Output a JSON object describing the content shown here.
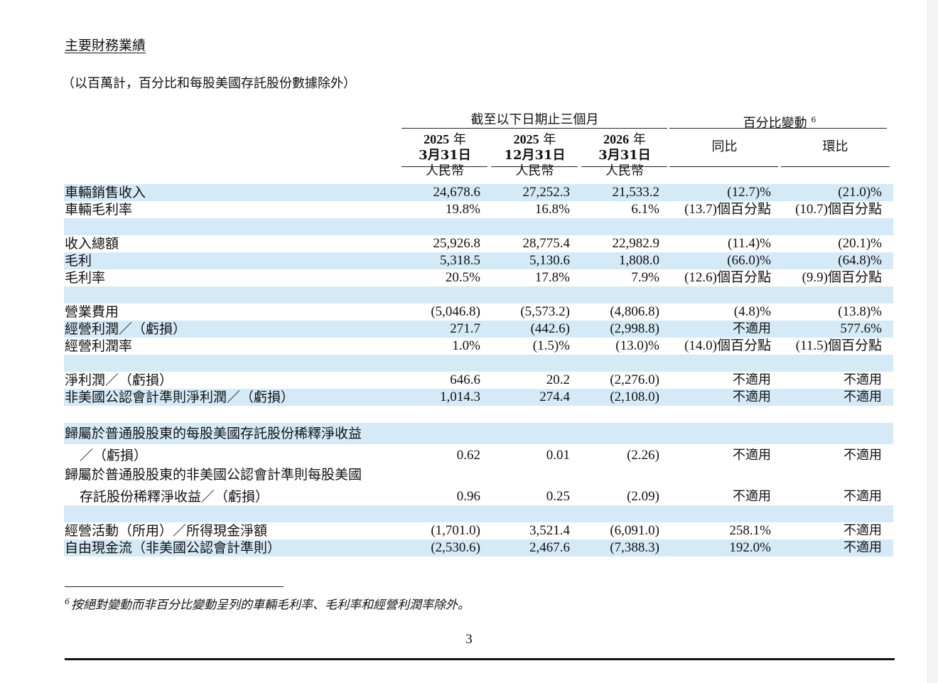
{
  "section_title": "主要財務業績",
  "units_note": "（以百萬計，百分比和每股美國存託股份數據除外）",
  "group_headers": {
    "three_months": "截至以下日期止三個月",
    "pct_change": "百分比變動",
    "pct_change_note": "6"
  },
  "columns": [
    {
      "year": "2025",
      "year_suffix": "年",
      "date": "3月31日",
      "currency": "人民幣"
    },
    {
      "year": "2025",
      "year_suffix": "年",
      "date": "12月31日",
      "currency": "人民幣"
    },
    {
      "year": "2026",
      "year_suffix": "年",
      "date": "3月31日",
      "currency": "人民幣"
    }
  ],
  "change_columns": [
    "同比",
    "環比"
  ],
  "rows": [
    {
      "label": [
        "車輛銷售收入"
      ],
      "values": [
        "24,678.6",
        "27,252.3",
        "21,533.2",
        "(12.7)%",
        "(21.0)%"
      ]
    },
    {
      "label": [
        "車輛毛利率"
      ],
      "values": [
        "19.8%",
        "16.8%",
        "6.1%",
        "(13.7)個百分點",
        "(10.7)個百分點"
      ]
    },
    {
      "label": [
        "收入總額"
      ],
      "values": [
        "25,926.8",
        "28,775.4",
        "22,982.9",
        "(11.4)%",
        "(20.1)%"
      ]
    },
    {
      "label": [
        "毛利"
      ],
      "values": [
        "5,318.5",
        "5,130.6",
        "1,808.0",
        "(66.0)%",
        "(64.8)%"
      ]
    },
    {
      "label": [
        "毛利率"
      ],
      "values": [
        "20.5%",
        "17.8%",
        "7.9%",
        "(12.6)個百分點",
        "(9.9)個百分點"
      ]
    },
    {
      "label": [
        "營業費用"
      ],
      "values": [
        "(5,046.8)",
        "(5,573.2)",
        "(4,806.8)",
        "(4.8)%",
        "(13.8)%"
      ]
    },
    {
      "label": [
        "經營利潤／（虧損）"
      ],
      "values": [
        "271.7",
        "(442.6)",
        "(2,998.8)",
        "不適用",
        "577.6%"
      ]
    },
    {
      "label": [
        "經營利潤率"
      ],
      "values": [
        "1.0%",
        "(1.5)%",
        "(13.0)%",
        "(14.0)個百分點",
        "(11.5)個百分點"
      ]
    },
    {
      "label": [
        "淨利潤／（虧損）"
      ],
      "values": [
        "646.6",
        "20.2",
        "(2,276.0)",
        "不適用",
        "不適用"
      ]
    },
    {
      "label": [
        "非美國公認會計準則淨利潤／（虧損）"
      ],
      "values": [
        "1,014.3",
        "274.4",
        "(2,108.0)",
        "不適用",
        "不適用"
      ]
    },
    {
      "label": [
        "歸屬於普通股股東的每股美國存託股份稀釋淨收益",
        "／（虧損）"
      ],
      "values": [
        "0.62",
        "0.01",
        "(2.26)",
        "不適用",
        "不適用"
      ]
    },
    {
      "label": [
        "歸屬於普通股股東的非美國公認會計準則每股美國",
        "存託股份稀釋淨收益／（虧損）"
      ],
      "values": [
        "0.96",
        "0.25",
        "(2.09)",
        "不適用",
        "不適用"
      ]
    },
    {
      "label": [
        "經營活動（所用）／所得現金淨額"
      ],
      "values": [
        "(1,701.0)",
        "3,521.4",
        "(6,091.0)",
        "258.1%",
        "不適用"
      ]
    },
    {
      "label": [
        "自由現金流（非美國公認會計準則）"
      ],
      "values": [
        "(2,530.6)",
        "2,467.6",
        "(7,388.3)",
        "192.0%",
        "不適用"
      ]
    }
  ],
  "footnote": {
    "marker": "6",
    "text": "按絕對變動而非百分比變動呈列的車輛毛利率、毛利率和經營利潤率除外。"
  },
  "page_number": "3"
}
